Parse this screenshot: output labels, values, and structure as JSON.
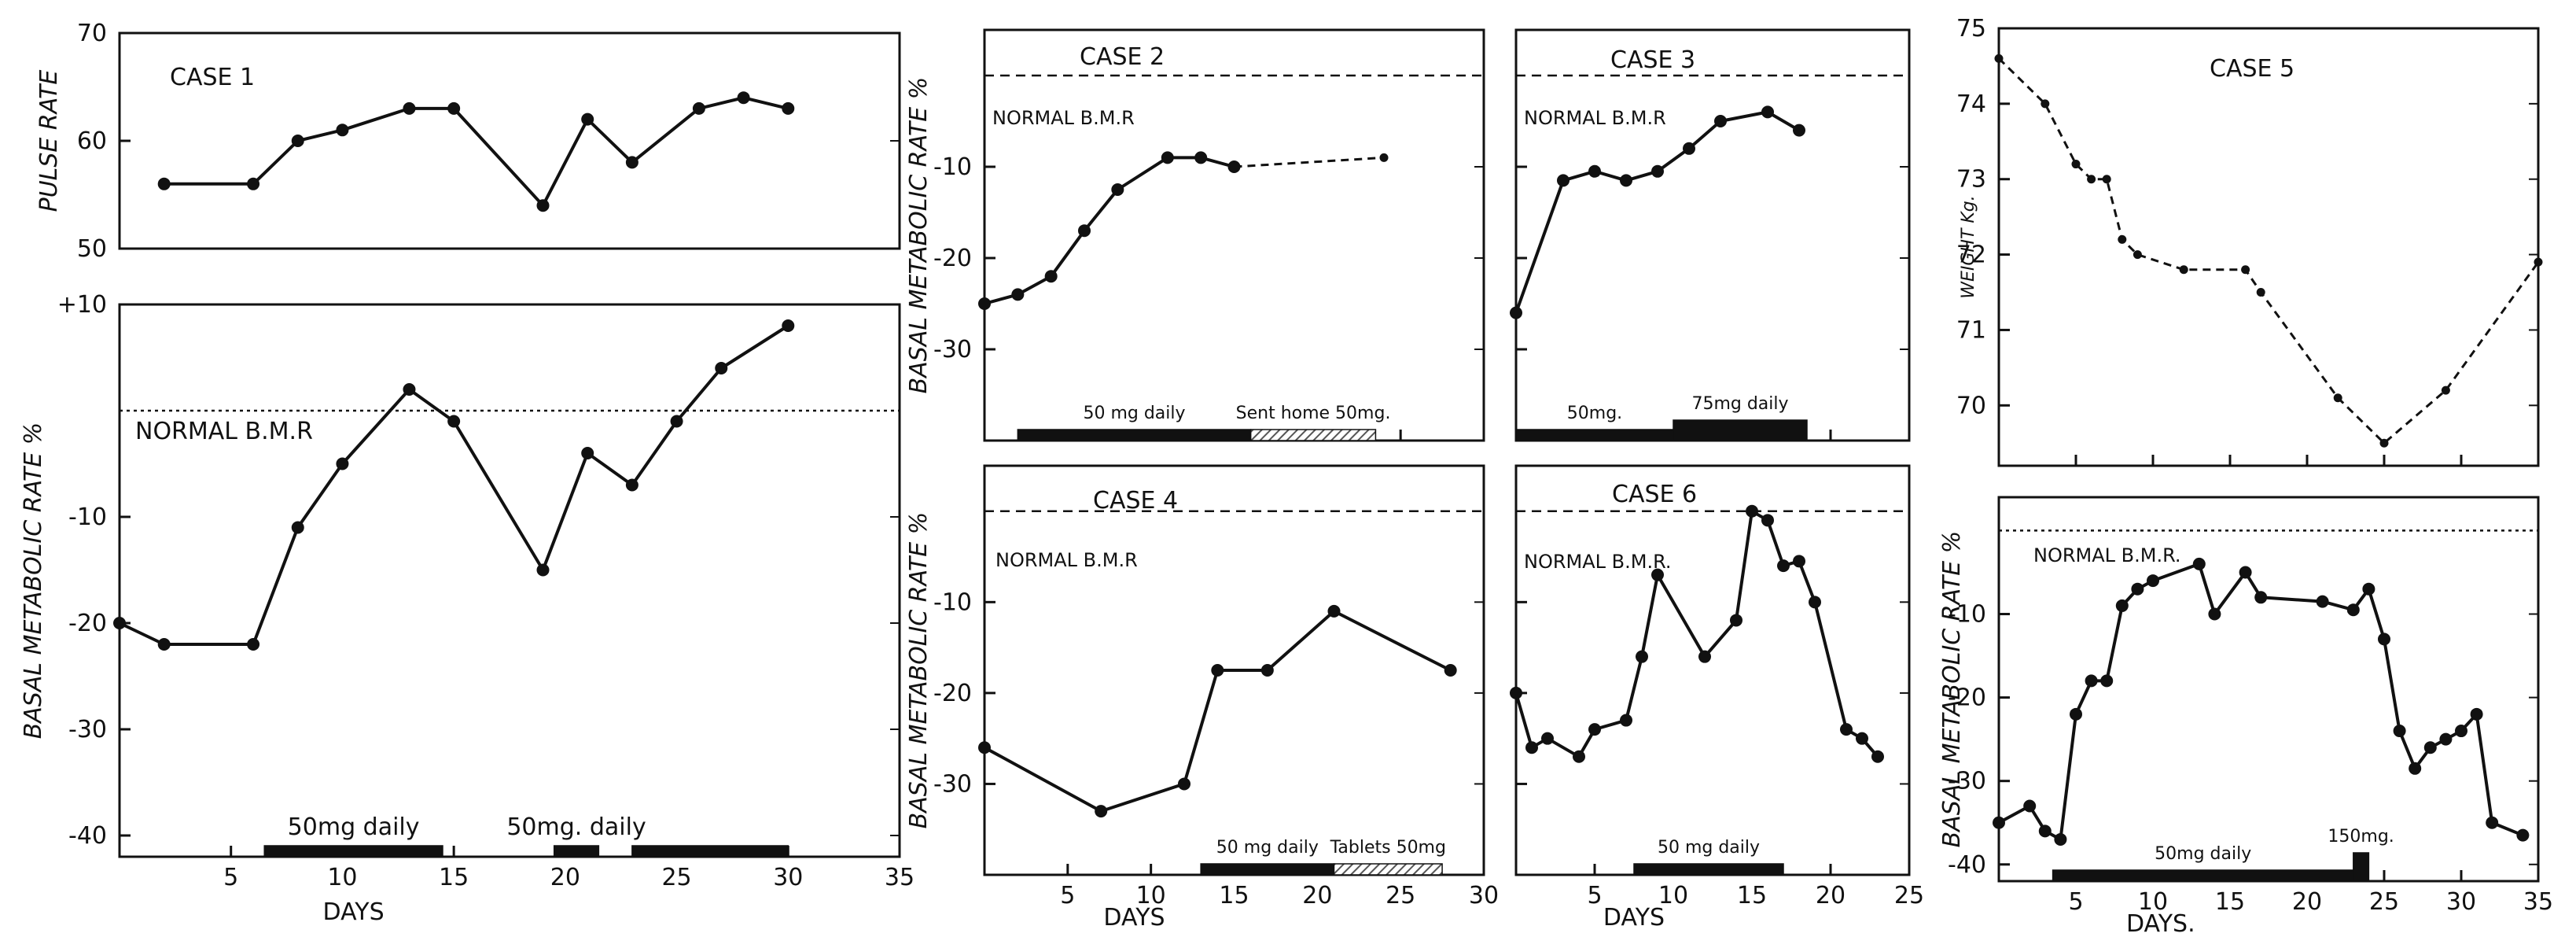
{
  "colors": {
    "ink": "#111111",
    "paper": "#ffffff",
    "hatch": "#555555"
  },
  "chart_data": [
    {
      "id": "case1-pulse",
      "type": "line",
      "title": "CASE 1",
      "xlabel": "",
      "ylabel": "PULSE RATE",
      "xlim": [
        0,
        35
      ],
      "ylim": [
        50,
        70
      ],
      "xticks": [],
      "yticks": [
        50,
        60,
        70
      ],
      "ytick_labels": [
        "50",
        "60",
        "70"
      ],
      "series": [
        {
          "name": "pulse",
          "style": "solid",
          "x": [
            2,
            6,
            8,
            10,
            13,
            15,
            19,
            21,
            23,
            26,
            28,
            30
          ],
          "y": [
            56,
            56,
            60,
            61,
            63,
            63,
            54,
            62,
            58,
            63,
            64,
            63
          ]
        }
      ]
    },
    {
      "id": "case1-bmr",
      "type": "line",
      "title": "",
      "xlabel": "DAYS",
      "ylabel": "BASAL METABOLIC RATE %",
      "xlim": [
        0,
        35
      ],
      "ylim": [
        -42,
        10
      ],
      "xticks": [
        5,
        10,
        15,
        20,
        25,
        30,
        35
      ],
      "xtick_labels": [
        "5",
        "10",
        "15",
        "20",
        "25",
        "30",
        "35"
      ],
      "yticks": [
        10,
        -10,
        -20,
        -30,
        -40
      ],
      "ytick_labels": [
        "+10",
        "-10",
        "-20",
        "-30",
        "-40"
      ],
      "normal_label": "NORMAL B.M.R",
      "normal_value": 0,
      "normal_style": "dotted",
      "series": [
        {
          "name": "BMR",
          "style": "solid",
          "x": [
            0,
            2,
            6,
            8,
            10,
            13,
            15,
            19,
            21,
            23,
            25,
            27,
            30
          ],
          "y": [
            -20,
            -22,
            -22,
            -11,
            -5,
            2,
            -1,
            -15,
            -4,
            -7,
            -1,
            4,
            8
          ]
        }
      ],
      "dose_bars": [
        {
          "label": "50mg daily",
          "from": 6.5,
          "to": 14.5,
          "style": "solid"
        },
        {
          "label": "50mg. daily",
          "from": 19.5,
          "to": 21.5,
          "style": "solid"
        },
        {
          "label": "",
          "from": 23,
          "to": 30,
          "style": "solid"
        }
      ]
    },
    {
      "id": "case2-bmr",
      "type": "line",
      "title": "CASE 2",
      "xlabel": "",
      "ylabel": "BASAL METABOLIC RATE %",
      "xlim": [
        0,
        30
      ],
      "ylim": [
        -40,
        5
      ],
      "xticks": [
        5,
        10,
        15,
        20,
        25,
        30
      ],
      "xtick_labels": [],
      "yticks": [
        -10,
        -20,
        -30
      ],
      "ytick_labels": [
        "-10",
        "-20",
        "-30"
      ],
      "normal_label": "NORMAL B.M.R",
      "normal_value": 0,
      "normal_style": "dashed",
      "series": [
        {
          "name": "BMR",
          "style": "solid",
          "x": [
            0,
            2,
            4,
            6,
            8,
            11,
            13,
            15
          ],
          "y": [
            -25,
            -24,
            -22,
            -17,
            -12.5,
            -9,
            -9,
            -10
          ]
        },
        {
          "name": "BMR sent home",
          "style": "dashed",
          "x": [
            15,
            24
          ],
          "y": [
            -10,
            -9
          ]
        }
      ],
      "dose_bars": [
        {
          "label": "50 mg daily",
          "from": 2,
          "to": 16,
          "style": "solid"
        },
        {
          "label": "Sent home 50mg.",
          "from": 16,
          "to": 23.5,
          "style": "hatched"
        }
      ]
    },
    {
      "id": "case3-bmr",
      "type": "line",
      "title": "CASE 3",
      "xlabel": "",
      "ylabel": "",
      "xlim": [
        0,
        25
      ],
      "ylim": [
        -40,
        5
      ],
      "xticks": [
        5,
        10,
        15,
        20,
        25
      ],
      "xtick_labels": [],
      "yticks": [
        -10,
        -20,
        -30
      ],
      "ytick_labels": [],
      "normal_label": "NORMAL B.M.R",
      "normal_value": 0,
      "normal_style": "dashed",
      "series": [
        {
          "name": "BMR",
          "style": "solid",
          "x": [
            0,
            3,
            5,
            7,
            9,
            11,
            13,
            16,
            18
          ],
          "y": [
            -26,
            -11.5,
            -10.5,
            -11.5,
            -10.5,
            -8,
            -5,
            -4,
            -6
          ]
        }
      ],
      "dose_bars": [
        {
          "label": "50mg.",
          "from": 0,
          "to": 10,
          "style": "solid"
        },
        {
          "label": "75mg daily",
          "from": 10,
          "to": 18.5,
          "style": "thick"
        }
      ]
    },
    {
      "id": "case4-bmr",
      "type": "line",
      "title": "CASE 4",
      "xlabel": "DAYS",
      "ylabel": "BASAL METABOLIC RATE %",
      "xlim": [
        0,
        30
      ],
      "ylim": [
        -40,
        5
      ],
      "xticks": [
        5,
        10,
        15,
        20,
        25,
        30
      ],
      "xtick_labels": [
        "5",
        "10",
        "15",
        "20",
        "25",
        "30"
      ],
      "yticks": [
        -10,
        -20,
        -30
      ],
      "ytick_labels": [
        "-10",
        "-20",
        "-30"
      ],
      "normal_label": "NORMAL B.M.R",
      "normal_value": 0,
      "normal_style": "dashed",
      "series": [
        {
          "name": "BMR",
          "style": "solid",
          "x": [
            0,
            7,
            12,
            14,
            17,
            21,
            28
          ],
          "y": [
            -26,
            -33,
            -30,
            -17.5,
            -17.5,
            -11,
            -17.5
          ]
        }
      ],
      "dose_bars": [
        {
          "label": "50 mg daily",
          "from": 13,
          "to": 21,
          "style": "solid"
        },
        {
          "label": "Tablets 50mg",
          "from": 21,
          "to": 27.5,
          "style": "hatched"
        }
      ]
    },
    {
      "id": "case6-bmr",
      "type": "line",
      "title": "CASE 6",
      "xlabel": "DAYS",
      "ylabel": "",
      "xlim": [
        0,
        25
      ],
      "ylim": [
        -40,
        5
      ],
      "xticks": [
        5,
        10,
        15,
        20,
        25
      ],
      "xtick_labels": [
        "5",
        "10",
        "15",
        "20",
        "25"
      ],
      "yticks": [
        -10,
        -20,
        -30
      ],
      "ytick_labels": [],
      "normal_label": "NORMAL B.M.R.",
      "normal_value": 0,
      "normal_style": "dashed",
      "series": [
        {
          "name": "BMR",
          "style": "solid",
          "x": [
            0,
            1,
            2,
            4,
            5,
            7,
            8,
            9,
            12,
            14,
            15,
            16,
            17,
            18,
            19,
            21,
            22,
            23
          ],
          "y": [
            -20,
            -26,
            -25,
            -27,
            -24,
            -23,
            -16,
            -7,
            -16,
            -12,
            0,
            -1,
            -6,
            -5.5,
            -10,
            -24,
            -25,
            -27
          ]
        }
      ],
      "dose_bars": [
        {
          "label": "50 mg daily",
          "from": 7.5,
          "to": 17,
          "style": "solid"
        }
      ]
    },
    {
      "id": "case5-weight",
      "type": "line",
      "title": "CASE 5",
      "xlabel": "",
      "ylabel": "WEIGHT Kg.",
      "xlim": [
        0,
        35
      ],
      "ylim": [
        69.2,
        75
      ],
      "xticks": [
        5,
        10,
        15,
        20,
        25,
        30,
        35
      ],
      "xtick_labels": [],
      "yticks": [
        75,
        74,
        73,
        72,
        71,
        70
      ],
      "ytick_labels": [
        "75",
        "74",
        "73",
        "72",
        "71",
        "70"
      ],
      "series": [
        {
          "name": "weight",
          "style": "dashed",
          "x": [
            0,
            3,
            5,
            6,
            7,
            8,
            9,
            12,
            16,
            17,
            22,
            25,
            29,
            35
          ],
          "y": [
            74.6,
            74,
            73.2,
            73,
            73,
            72.2,
            72,
            71.8,
            71.8,
            71.5,
            70.1,
            69.5,
            70.2,
            71.9
          ]
        }
      ]
    },
    {
      "id": "case5-bmr",
      "type": "line",
      "title": "",
      "xlabel": "DAYS.",
      "ylabel": "BASAL METABOLIC RATE %",
      "xlim": [
        0,
        35
      ],
      "ylim": [
        -42,
        4
      ],
      "xticks": [
        5,
        10,
        15,
        20,
        25,
        30,
        35
      ],
      "xtick_labels": [
        "5",
        "10",
        "15",
        "20",
        "25",
        "30",
        "35"
      ],
      "yticks": [
        -10,
        -20,
        -30,
        -40
      ],
      "ytick_labels": [
        "-10",
        "-20",
        "-30",
        "-40"
      ],
      "normal_label": "NORMAL B.M.R.",
      "normal_value": 0,
      "normal_style": "dotted",
      "series": [
        {
          "name": "BMR",
          "style": "solid",
          "x": [
            0,
            2,
            3,
            4,
            5,
            6,
            7,
            8,
            9,
            10,
            13,
            14,
            16,
            17,
            21,
            23,
            24,
            25,
            26,
            27,
            28,
            29,
            30,
            31,
            32,
            34
          ],
          "y": [
            -35,
            -33,
            -36,
            -37,
            -22,
            -18,
            -18,
            -9,
            -7,
            -6,
            -4,
            -10,
            -5,
            -8,
            -8.5,
            -9.5,
            -7,
            -13,
            -24,
            -28.5,
            -26,
            -25,
            -24,
            -22,
            -35,
            -36.5
          ]
        }
      ],
      "dose_bars": [
        {
          "label": "50mg daily",
          "from": 3.5,
          "to": 23,
          "style": "solid"
        },
        {
          "label": "150mg.",
          "from": 23,
          "to": 24,
          "style": "block"
        }
      ]
    }
  ]
}
